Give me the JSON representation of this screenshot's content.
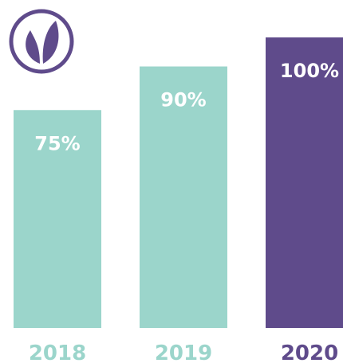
{
  "chart_data": {
    "type": "bar",
    "categories": [
      "2018",
      "2019",
      "2020"
    ],
    "values": [
      75,
      90,
      100
    ],
    "value_labels": [
      "75%",
      "90%",
      "100%"
    ],
    "colors": [
      "#9bd5cb",
      "#9bd5cb",
      "#5f4b8b"
    ]
  }
}
